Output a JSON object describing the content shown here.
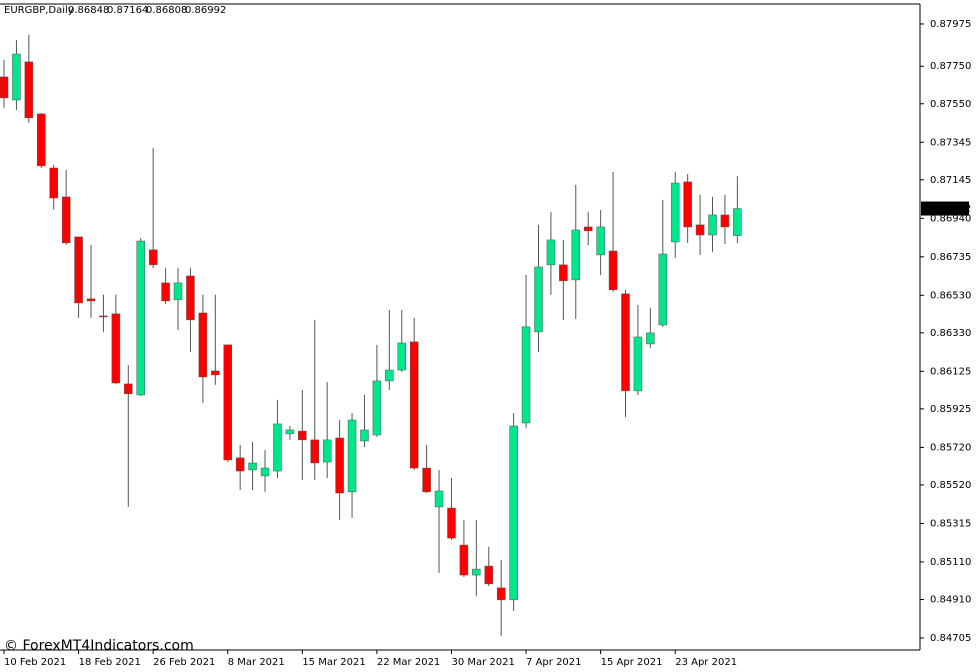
{
  "chart_data": {
    "type": "candlestick",
    "title": "EURGBP,Daily",
    "watermark": "© ForexMT4Indicators.com",
    "categories": [
      "10 Feb 2021",
      null,
      null,
      null,
      null,
      null,
      "18 Feb 2021",
      null,
      null,
      null,
      null,
      null,
      "26 Feb 2021",
      null,
      null,
      null,
      null,
      null,
      "8 Mar 2021",
      null,
      null,
      null,
      null,
      null,
      "15 Mar 2021",
      null,
      null,
      null,
      null,
      null,
      "22 Mar 2021",
      null,
      null,
      null,
      null,
      null,
      "30 Mar 2021",
      null,
      null,
      null,
      null,
      null,
      "7 Apr 2021",
      null,
      null,
      null,
      null,
      null,
      "15 Apr 2021",
      null,
      null,
      null,
      null,
      null,
      "23 Apr 2021",
      null,
      null,
      null,
      null,
      null
    ],
    "open": [
      0.87693,
      0.8757,
      0.87773,
      0.87496,
      0.87208,
      0.87054,
      0.86841,
      0.86511,
      0.8642,
      0.86431,
      0.86058,
      0.85999,
      0.86772,
      0.86596,
      0.86506,
      0.86633,
      0.86436,
      0.86127,
      0.86266,
      0.85664,
      0.856,
      0.85568,
      0.85594,
      0.85792,
      0.85807,
      0.8576,
      0.85642,
      0.8577,
      0.85483,
      0.85754,
      0.85786,
      0.86074,
      0.86132,
      0.86282,
      0.8561,
      0.85403,
      0.85397,
      0.852,
      0.8504,
      0.85088,
      0.84972,
      0.84908,
      0.8585,
      0.86335,
      0.86692,
      0.86692,
      0.86612,
      0.86894,
      0.86745,
      0.86766,
      0.86538,
      0.86021,
      0.86271,
      0.86372,
      0.86814,
      0.87134,
      0.86905,
      0.86851,
      0.86958,
      0.86848
    ],
    "high": [
      0.87783,
      0.8789,
      0.87917,
      0.87501,
      0.87224,
      0.87198,
      0.86841,
      0.86798,
      0.86533,
      0.86533,
      0.86159,
      0.86835,
      0.87315,
      0.86676,
      0.86676,
      0.86676,
      0.86533,
      0.86533,
      0.86266,
      0.85733,
      0.85749,
      0.85706,
      0.85973,
      0.85834,
      0.86026,
      0.86399,
      0.86068,
      0.85866,
      0.85903,
      0.85999,
      0.86266,
      0.86452,
      0.86452,
      0.8641,
      0.85733,
      0.856,
      0.85557,
      0.85333,
      0.85333,
      0.8519,
      0.8512,
      0.85903,
      0.86638,
      0.86905,
      0.86974,
      0.86825,
      0.87118,
      0.86974,
      0.86985,
      0.87187,
      0.86559,
      0.86479,
      0.86463,
      0.87038,
      0.87187,
      0.87176,
      0.87065,
      0.87054,
      0.87065,
      0.87164
    ],
    "low": [
      0.87528,
      0.87517,
      0.87448,
      0.87208,
      0.86985,
      0.86798,
      0.8641,
      0.8641,
      0.86335,
      0.86058,
      0.85403,
      0.85994,
      0.86676,
      0.86484,
      0.86345,
      0.86228,
      0.85957,
      0.86053,
      0.85642,
      0.85493,
      0.85493,
      0.85483,
      0.85557,
      0.8576,
      0.85547,
      0.85547,
      0.85557,
      0.85333,
      0.85344,
      0.85722,
      0.85776,
      0.86026,
      0.86122,
      0.856,
      0.85477,
      0.85051,
      0.85227,
      0.8503,
      0.84929,
      0.84982,
      0.84716,
      0.84849,
      0.85823,
      0.86228,
      0.86533,
      0.86399,
      0.86404,
      0.86798,
      0.86638,
      0.86549,
      0.85882,
      0.85999,
      0.8625,
      0.86362,
      0.86729,
      0.86809,
      0.86745,
      0.86761,
      0.86803,
      0.86808
    ],
    "close": [
      0.87581,
      0.87815,
      0.87475,
      0.87219,
      0.87048,
      0.86809,
      0.86489,
      0.865,
      0.86415,
      0.86063,
      0.86005,
      0.86819,
      0.86692,
      0.865,
      0.86596,
      0.86399,
      0.86095,
      0.86106,
      0.85653,
      0.85594,
      0.85637,
      0.8561,
      0.85845,
      0.85813,
      0.8576,
      0.85637,
      0.8576,
      0.85477,
      0.85866,
      0.85813,
      0.86074,
      0.86132,
      0.86276,
      0.8561,
      0.85483,
      0.85488,
      0.85237,
      0.8504,
      0.85072,
      0.84993,
      0.84908,
      0.85834,
      0.86362,
      0.86681,
      0.86825,
      0.86607,
      0.86878,
      0.86873,
      0.86894,
      0.86559,
      0.86021,
      0.86308,
      0.8633,
      0.8675,
      0.87128,
      0.86894,
      0.86851,
      0.86958,
      0.86894,
      0.86992
    ],
    "up_color": "#00e68a",
    "down_color": "#ff0000",
    "wick_color": "#555555",
    "ylim": [
      0.84641,
      0.88076
    ],
    "yticks": [
      0.87975,
      {
        "value": 0.8775,
        "label": "0.87750"
      },
      {
        "value": 0.8755,
        "label": "0.87550"
      },
      0.87345,
      0.87145,
      {
        "value": 0.8694,
        "label": "0.86940"
      },
      0.86735,
      {
        "value": 0.8653,
        "label": "0.86530"
      },
      {
        "value": 0.8633,
        "label": "0.86330"
      },
      0.86125,
      0.85925,
      {
        "value": 0.8572,
        "label": "0.85720"
      },
      {
        "value": 0.8552,
        "label": "0.85520"
      },
      0.85315,
      {
        "value": 0.8511,
        "label": "0.85110"
      },
      {
        "value": 0.8491,
        "label": "0.84910"
      },
      0.84705
    ]
  }
}
